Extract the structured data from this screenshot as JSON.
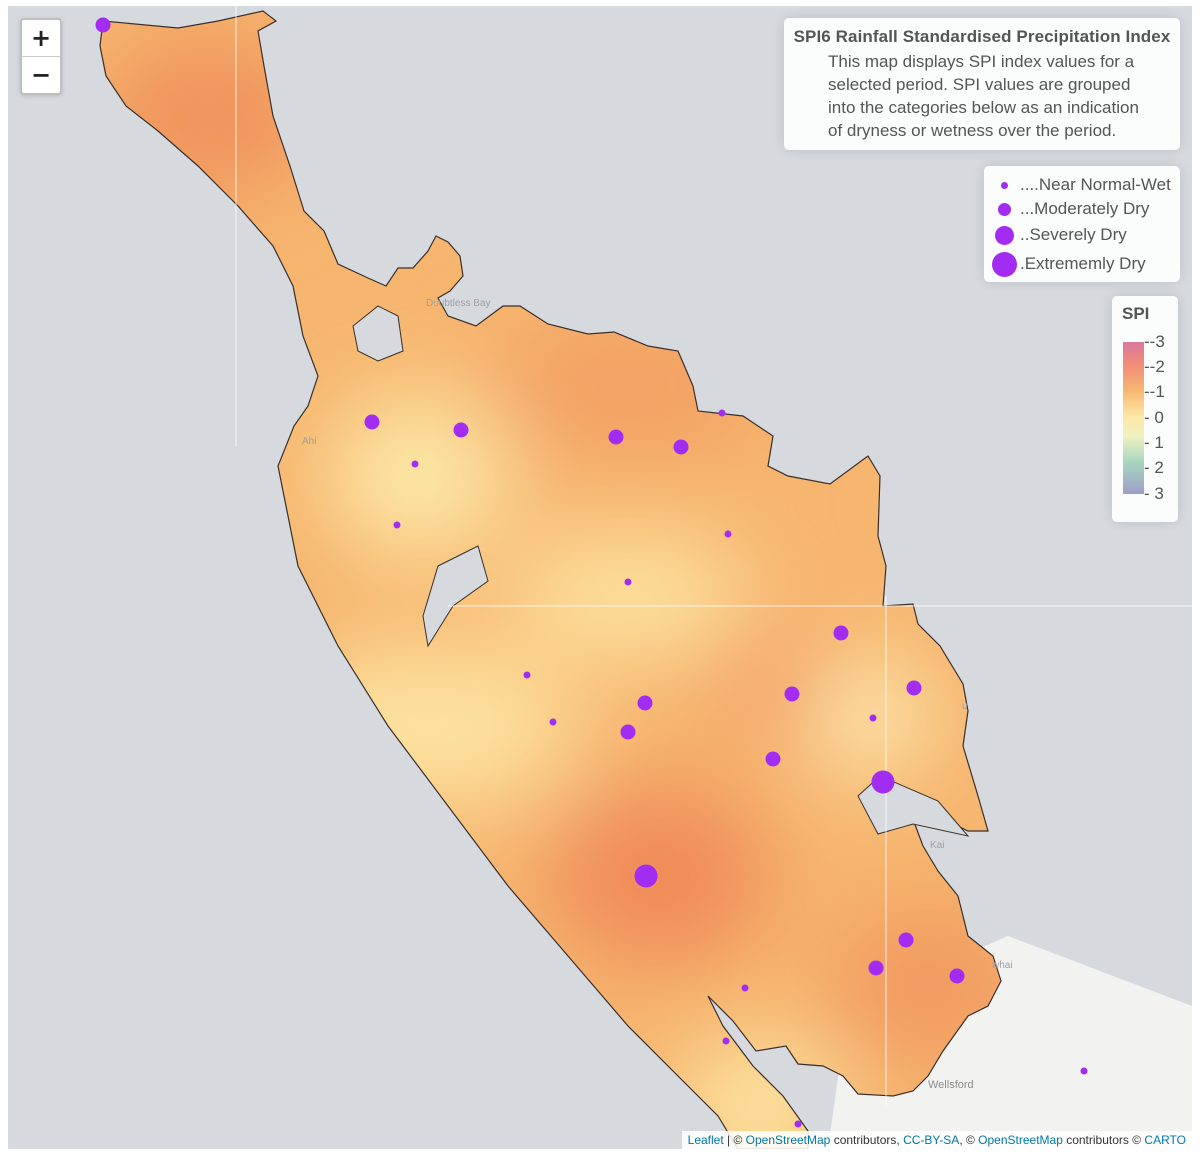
{
  "map": {
    "basemap_labels": [
      "Doubtless Bay",
      "Wellsford",
      "Ahi",
      "Kai",
      "u",
      "whai"
    ],
    "colors": {
      "water": "#d6dadf",
      "land_basemap": "#f2f2f0",
      "marker": "#a32cf3",
      "coastline": "#3a2f2a"
    }
  },
  "zoom": {
    "in_label": "+",
    "out_label": "−"
  },
  "info": {
    "title": "SPI6 Rainfall Standardised Precipitation Index",
    "description": "This map displays SPI index values for a selected period. SPI values are grouped into the categories below as an indication of dryness or wetness over the period."
  },
  "size_legend": [
    {
      "label": "....Near Normal-Wet",
      "category": "near-normal-wet"
    },
    {
      "label": "...Moderately Dry",
      "category": "moderately-dry"
    },
    {
      "label": "..Severely Dry",
      "category": "severely-dry"
    },
    {
      "label": ".Extrememly Dry",
      "category": "extremely-dry"
    }
  ],
  "spi_legend": {
    "title": "SPI",
    "ticks": [
      "-3",
      "-2",
      "-1",
      "0",
      "1",
      "2",
      "3"
    ],
    "colors": [
      "#d9779c",
      "#f28b7a",
      "#f6b66f",
      "#fde6a2",
      "#eef2c0",
      "#a6d4bf",
      "#9e9ec7"
    ]
  },
  "attribution": {
    "leaflet": "Leaflet",
    "sep1": " | © ",
    "osm1": "OpenStreetMap",
    "mid1": " contributors, ",
    "ccbysa": "CC-BY-SA",
    "mid2": ", © ",
    "osm2": "OpenStreetMap",
    "mid3": " contributors © ",
    "carto": "CARTO"
  }
}
